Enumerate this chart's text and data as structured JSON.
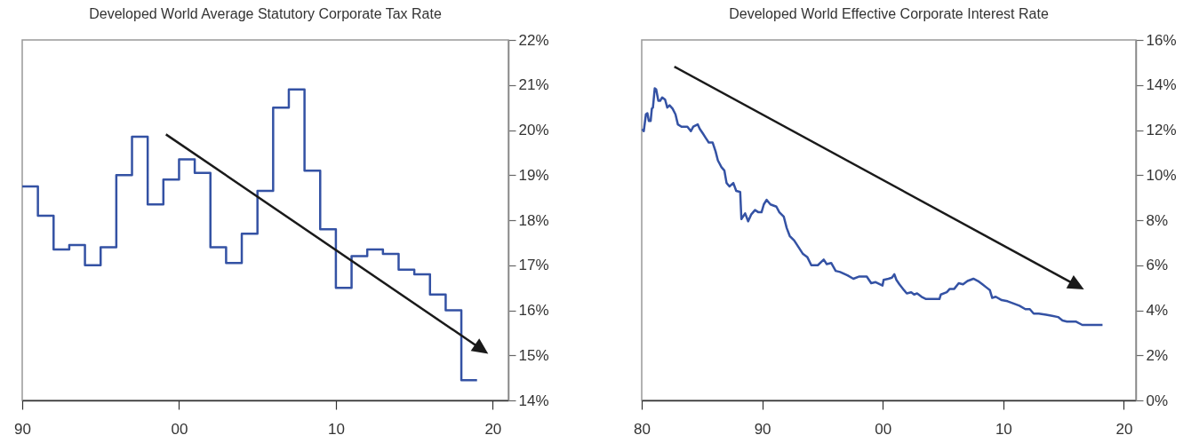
{
  "chart_data": [
    {
      "type": "step",
      "title": "Developed World Average Statutory Corporate Tax Rate",
      "x": [
        1990,
        1991,
        1992,
        1993,
        1994,
        1995,
        1996,
        1997,
        1998,
        1999,
        2000,
        2001,
        2002,
        2003,
        2004,
        2005,
        2006,
        2007,
        2008,
        2009,
        2010,
        2011,
        2012,
        2013,
        2014,
        2015,
        2016,
        2017,
        2018,
        2019
      ],
      "series": [
        {
          "color": "#3452a4",
          "values": [
            18.75,
            18.1,
            17.35,
            17.45,
            17.0,
            17.4,
            19.0,
            19.85,
            18.35,
            18.9,
            19.35,
            19.05,
            17.4,
            17.05,
            17.7,
            18.65,
            20.5,
            20.9,
            19.1,
            17.8,
            16.5,
            17.2,
            17.35,
            17.25,
            16.9,
            16.8,
            16.35,
            16.0,
            14.45,
            14.45
          ]
        }
      ],
      "xlim": [
        1990,
        2021
      ],
      "xticks": [
        {
          "value": 1990,
          "label": "90"
        },
        {
          "value": 2000,
          "label": "00"
        },
        {
          "value": 2010,
          "label": "10"
        },
        {
          "value": 2020,
          "label": "20"
        }
      ],
      "ylim": [
        14,
        22
      ],
      "yticks": [
        {
          "value": 14,
          "label": "14%"
        },
        {
          "value": 15,
          "label": "15%"
        },
        {
          "value": 16,
          "label": "16%"
        },
        {
          "value": 17,
          "label": "17%"
        },
        {
          "value": 18,
          "label": "18%"
        },
        {
          "value": 19,
          "label": "19%"
        },
        {
          "value": 20,
          "label": "20%"
        },
        {
          "value": 21,
          "label": "21%"
        },
        {
          "value": 22,
          "label": "22%"
        }
      ]
    },
    {
      "type": "line",
      "title": "Developed World Effective Corporate Interest Rate",
      "x": [
        1980.05,
        1980.17,
        1980.35,
        1980.47,
        1980.59,
        1980.74,
        1980.84,
        1980.93,
        1981.08,
        1981.2,
        1981.38,
        1981.53,
        1981.7,
        1981.94,
        1982.12,
        1982.31,
        1982.56,
        1982.8,
        1983.0,
        1983.3,
        1983.79,
        1984.08,
        1984.28,
        1984.65,
        1984.82,
        1985.07,
        1985.31,
        1985.56,
        1985.88,
        1986.13,
        1986.32,
        1986.62,
        1986.86,
        1987.04,
        1987.28,
        1987.6,
        1987.84,
        1988.17,
        1988.27,
        1988.58,
        1988.83,
        1989.08,
        1989.4,
        1989.69,
        1989.94,
        1990.13,
        1990.36,
        1990.68,
        1991.17,
        1991.42,
        1991.79,
        1992.03,
        1992.28,
        1992.65,
        1993.01,
        1993.38,
        1993.75,
        1994.07,
        1994.61,
        1995.1,
        1995.35,
        1995.72,
        1996.09,
        1996.46,
        1997.07,
        1997.56,
        1998.06,
        1998.67,
        1999.04,
        1999.41,
        1999.98,
        2000.07,
        2000.47,
        2000.76,
        2000.96,
        2001.13,
        2001.38,
        2001.75,
        2001.99,
        2002.36,
        2002.6,
        2002.85,
        2003.22,
        2003.59,
        2003.96,
        2004.7,
        2004.82,
        2005.31,
        2005.56,
        2005.93,
        2006.3,
        2006.66,
        2007.03,
        2007.52,
        2007.9,
        2008.27,
        2008.63,
        2008.88,
        2009.08,
        2009.37,
        2009.87,
        2010.35,
        2010.85,
        2011.34,
        2011.83,
        2012.2,
        2012.52,
        2012.94,
        2013.55,
        2014.05,
        2014.54,
        2014.91,
        2015.28,
        2016.01,
        2016.55,
        2016.99,
        2017.73,
        2018.23
      ],
      "series": [
        {
          "color": "#3452a4",
          "values": [
            12.05,
            11.95,
            12.7,
            12.75,
            12.4,
            12.4,
            12.95,
            13.0,
            13.85,
            13.8,
            13.3,
            13.3,
            13.45,
            13.35,
            13.0,
            13.1,
            12.95,
            12.7,
            12.25,
            12.15,
            12.15,
            11.95,
            12.15,
            12.25,
            12.05,
            11.85,
            11.65,
            11.45,
            11.45,
            11.05,
            10.65,
            10.35,
            10.2,
            9.65,
            9.5,
            9.65,
            9.3,
            9.25,
            8.05,
            8.3,
            7.95,
            8.25,
            8.45,
            8.35,
            8.35,
            8.7,
            8.9,
            8.7,
            8.6,
            8.35,
            8.15,
            7.65,
            7.3,
            7.1,
            6.8,
            6.5,
            6.35,
            6.0,
            6.0,
            6.25,
            6.05,
            6.1,
            5.75,
            5.7,
            5.55,
            5.4,
            5.5,
            5.5,
            5.2,
            5.25,
            5.1,
            5.35,
            5.4,
            5.45,
            5.6,
            5.35,
            5.15,
            4.9,
            4.75,
            4.8,
            4.7,
            4.75,
            4.6,
            4.5,
            4.5,
            4.5,
            4.7,
            4.8,
            4.95,
            4.95,
            5.2,
            5.15,
            5.3,
            5.4,
            5.3,
            5.15,
            5.0,
            4.9,
            4.55,
            4.6,
            4.45,
            4.4,
            4.3,
            4.2,
            4.05,
            4.05,
            3.85,
            3.85,
            3.8,
            3.75,
            3.7,
            3.55,
            3.5,
            3.5,
            3.35,
            3.35,
            3.35,
            3.35
          ]
        }
      ],
      "xlim": [
        1980,
        2021
      ],
      "xticks": [
        {
          "value": 1980,
          "label": "80"
        },
        {
          "value": 1990,
          "label": "90"
        },
        {
          "value": 2000,
          "label": "00"
        },
        {
          "value": 2010,
          "label": "10"
        },
        {
          "value": 2020,
          "label": "20"
        }
      ],
      "ylim": [
        0,
        16
      ],
      "yticks": [
        {
          "value": 0,
          "label": "0%"
        },
        {
          "value": 2,
          "label": "2%"
        },
        {
          "value": 4,
          "label": "4%"
        },
        {
          "value": 6,
          "label": "6%"
        },
        {
          "value": 8,
          "label": "8%"
        },
        {
          "value": 10,
          "label": "10%"
        },
        {
          "value": 12,
          "label": "12%"
        },
        {
          "value": 14,
          "label": "14%"
        },
        {
          "value": 16,
          "label": "16%"
        }
      ]
    }
  ]
}
